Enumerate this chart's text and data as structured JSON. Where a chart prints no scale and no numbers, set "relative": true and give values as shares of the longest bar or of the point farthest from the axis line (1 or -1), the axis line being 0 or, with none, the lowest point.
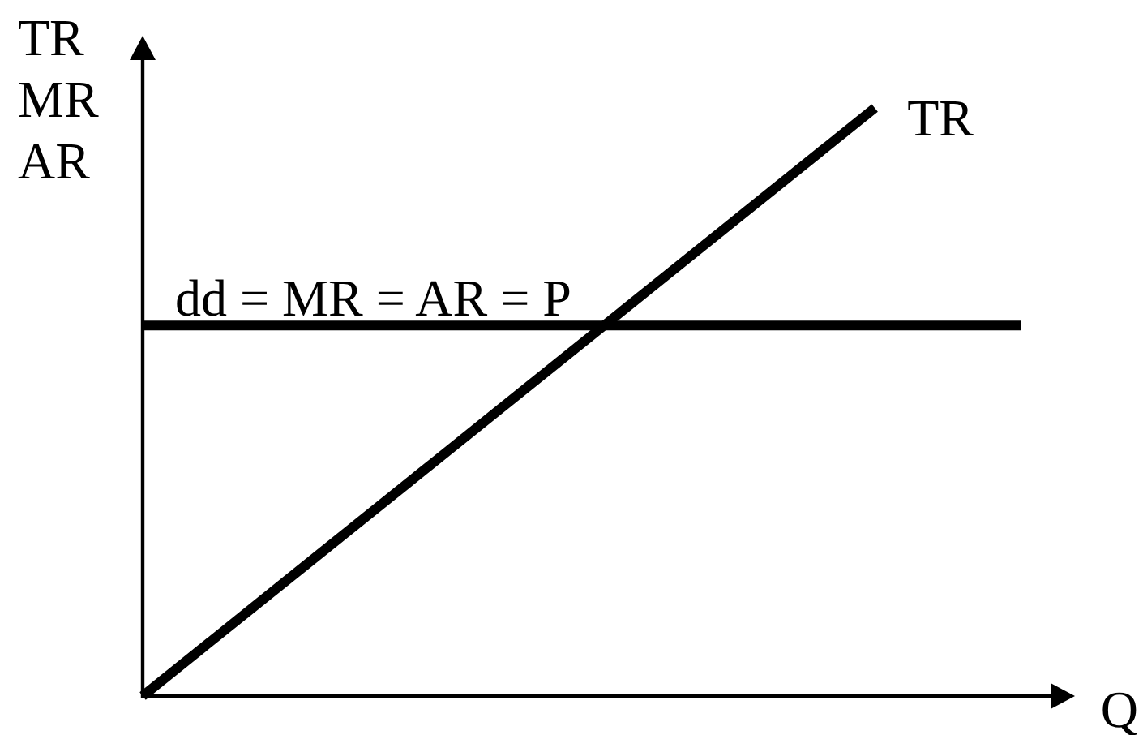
{
  "chart_data": {
    "type": "line",
    "relative": true,
    "xlabel": "Q",
    "ylabel": "TR\nMR\nAR",
    "categories": [
      null,
      null,
      null,
      null,
      null,
      null,
      null
    ],
    "series": [
      {
        "name": "TR",
        "color": "#000000",
        "values": [
          0,
          0.2,
          0.4,
          0.6,
          0.8,
          1,
          null
        ]
      },
      {
        "name": "dd = MR = AR = P",
        "color": "#000000",
        "values": [
          0.63,
          0.63,
          0.63,
          0.63,
          0.63,
          0.63,
          0.63
        ]
      }
    ],
    "legend": false,
    "grid": false,
    "marker": "none",
    "line_style": "solid"
  }
}
